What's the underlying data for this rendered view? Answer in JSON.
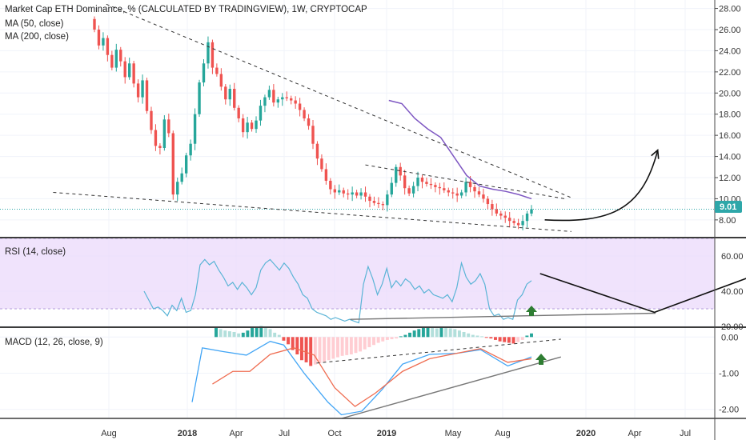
{
  "header": {
    "title": "Market Cap ETH Dominance, % (CALCULATED BY TRADINGVIEW), 1W, CRYPTOCAP",
    "ma50_label": "MA (50, close)",
    "ma200_label": "MA (200, close)",
    "rsi_label": "RSI (14, close)",
    "macd_label": "MACD (12, 26, close, 9)"
  },
  "colors": {
    "up": "#26a69a",
    "down": "#ef5350",
    "ma50": "#7e57c2",
    "rsi_line": "#5ab4d6",
    "rsi_band": "#ebd9fb",
    "macd_line": "#42a5f5",
    "signal_line": "#ef6c50",
    "arrow_green": "#2e7d32",
    "price_label": "#2ea7a9"
  },
  "chart_data": [
    {
      "type": "candlestick",
      "panel": "price",
      "ylim": [
        6.4,
        28.8
      ],
      "y_ticks": [
        "28.00",
        "26.00",
        "24.00",
        "22.00",
        "20.00",
        "18.00",
        "16.00",
        "14.00",
        "12.00",
        "10.00",
        "8.00"
      ],
      "last_price": "9.01",
      "x_ticks": [
        "Aug",
        "2018",
        "Apr",
        "Jul",
        "Oct",
        "2019",
        "May",
        "Aug",
        "2020",
        "Apr",
        "Jul"
      ],
      "closes": [
        26.0,
        24.5,
        25.2,
        23.6,
        22.4,
        24.1,
        23.0,
        21.5,
        22.8,
        20.9,
        19.6,
        21.2,
        18.3,
        16.5,
        15.0,
        14.8,
        17.5,
        16.2,
        10.4,
        11.6,
        12.4,
        14.1,
        15.2,
        18.0,
        21.0,
        22.8,
        24.8,
        22.4,
        21.8,
        20.6,
        19.4,
        20.4,
        18.6,
        17.6,
        16.3,
        17.2,
        16.6,
        17.4,
        18.8,
        19.6,
        20.3,
        19.1,
        19.4,
        19.6,
        19.5,
        19.3,
        19.0,
        18.4,
        17.6,
        16.9,
        15.2,
        13.8,
        12.8,
        11.7,
        10.9,
        10.6,
        10.8,
        10.5,
        10.4,
        10.6,
        10.3,
        10.6,
        10.2,
        9.8,
        9.6,
        9.5,
        9.4,
        10.4,
        11.5,
        13.0,
        12.2,
        11.0,
        10.5,
        11.2,
        12.0,
        11.6,
        11.4,
        11.3,
        11.1,
        11.0,
        10.8,
        10.6,
        10.5,
        10.3,
        10.6,
        11.6,
        11.1,
        10.7,
        10.4,
        10.0,
        9.5,
        9.0,
        8.6,
        8.4,
        8.2,
        7.9,
        7.7,
        7.5,
        7.9,
        8.6,
        9.01
      ],
      "ma50": [
        [
          0.45,
          19.3
        ],
        [
          0.5,
          19.0
        ],
        [
          0.55,
          17.6
        ],
        [
          0.6,
          16.6
        ],
        [
          0.65,
          15.8
        ],
        [
          0.7,
          14.0
        ],
        [
          0.75,
          12.2
        ],
        [
          0.8,
          11.2
        ],
        [
          0.85,
          10.9
        ],
        [
          0.9,
          10.7
        ],
        [
          0.95,
          10.4
        ],
        [
          1.0,
          10.0
        ]
      ],
      "trendlines_dashed": [
        [
          [
            0.16,
            28.4
          ],
          [
            0.86,
            10.1
          ]
        ],
        [
          [
            0.08,
            10.6
          ],
          [
            0.86,
            6.9
          ]
        ],
        [
          [
            0.55,
            13.2
          ],
          [
            0.85,
            10.0
          ]
        ]
      ],
      "projection_arrow": [
        [
          0.82,
          8.0
        ],
        [
          0.99,
          14.6
        ]
      ]
    },
    {
      "type": "line",
      "panel": "rsi",
      "ylim": [
        20,
        70
      ],
      "y_ticks": [
        "60.00",
        "40.00",
        "20.00"
      ],
      "band": [
        30,
        70
      ],
      "values": [
        40,
        35,
        30,
        31,
        29,
        26,
        32,
        29,
        36,
        28,
        29,
        38,
        55,
        58,
        55,
        57,
        52,
        48,
        43,
        45,
        41,
        45,
        42,
        38,
        42,
        52,
        56,
        58,
        55,
        52,
        56,
        53,
        48,
        44,
        38,
        36,
        30,
        28,
        27,
        26,
        24,
        25,
        24,
        23,
        24,
        23,
        22,
        44,
        54,
        47,
        38,
        44,
        53,
        42,
        46,
        43,
        47,
        45,
        41,
        43,
        39,
        41,
        38,
        37,
        36,
        38,
        34,
        42,
        56,
        48,
        44,
        46,
        50,
        44,
        30,
        26,
        27,
        24,
        25,
        24,
        35,
        38,
        44,
        46
      ],
      "support_line": [
        [
          0.21,
          24
        ],
        [
          0.85,
          27.5
        ]
      ],
      "projection_arrow": [
        [
          0.61,
          50
        ],
        [
          0.77,
          28
        ],
        [
          0.97,
          58
        ]
      ]
    },
    {
      "type": "bar+line",
      "panel": "macd",
      "ylim": [
        -2.25,
        0.25
      ],
      "y_ticks": [
        "0.00",
        "-1.00",
        "-2.00"
      ],
      "histogram": [
        0.28,
        0.22,
        0.18,
        0.16,
        0.14,
        0.1,
        0.12,
        0.18,
        0.26,
        0.28,
        0.3,
        0.26,
        0.22,
        0.12,
        0.06,
        -0.1,
        -0.2,
        -0.36,
        -0.48,
        -0.64,
        -0.7,
        -0.8,
        -0.76,
        -0.72,
        -0.68,
        -0.64,
        -0.6,
        -0.56,
        -0.52,
        -0.5,
        -0.48,
        -0.44,
        -0.4,
        -0.34,
        -0.28,
        -0.22,
        -0.16,
        -0.12,
        -0.08,
        -0.06,
        -0.04,
        0.02,
        0.06,
        0.12,
        0.18,
        0.22,
        0.26,
        0.28,
        0.26,
        0.24,
        0.28,
        0.26,
        0.24,
        0.22,
        0.18,
        0.14,
        0.1,
        0.06,
        0.04,
        0.02,
        -0.02,
        -0.04,
        -0.08,
        -0.12,
        -0.14,
        -0.16,
        -0.18,
        -0.14,
        -0.08,
        0.04,
        0.1
      ],
      "macd_line": [
        [
          0.0,
          -1.8
        ],
        [
          0.03,
          -0.3
        ],
        [
          0.09,
          -0.4
        ],
        [
          0.16,
          -0.5
        ],
        [
          0.23,
          -0.12
        ],
        [
          0.27,
          -0.22
        ],
        [
          0.33,
          -1.0
        ],
        [
          0.4,
          -1.8
        ],
        [
          0.44,
          -2.15
        ],
        [
          0.5,
          -2.05
        ],
        [
          0.56,
          -1.45
        ],
        [
          0.62,
          -0.75
        ],
        [
          0.7,
          -0.48
        ],
        [
          0.78,
          -0.45
        ],
        [
          0.85,
          -0.35
        ],
        [
          0.93,
          -0.8
        ],
        [
          1.0,
          -0.55
        ]
      ],
      "signal_line": [
        [
          0.06,
          -1.3
        ],
        [
          0.12,
          -0.95
        ],
        [
          0.17,
          -0.95
        ],
        [
          0.23,
          -0.48
        ],
        [
          0.3,
          -0.3
        ],
        [
          0.36,
          -0.5
        ],
        [
          0.42,
          -1.4
        ],
        [
          0.48,
          -1.92
        ],
        [
          0.54,
          -1.55
        ],
        [
          0.62,
          -0.95
        ],
        [
          0.7,
          -0.6
        ],
        [
          0.78,
          -0.45
        ],
        [
          0.85,
          -0.32
        ],
        [
          0.93,
          -0.7
        ],
        [
          1.0,
          -0.6
        ]
      ],
      "dashed_trend": [
        [
          0.35,
          -0.72
        ],
        [
          0.96,
          -0.06
        ]
      ],
      "support_line": [
        [
          0.53,
          -2.25
        ],
        [
          0.96,
          -0.55
        ]
      ]
    }
  ]
}
